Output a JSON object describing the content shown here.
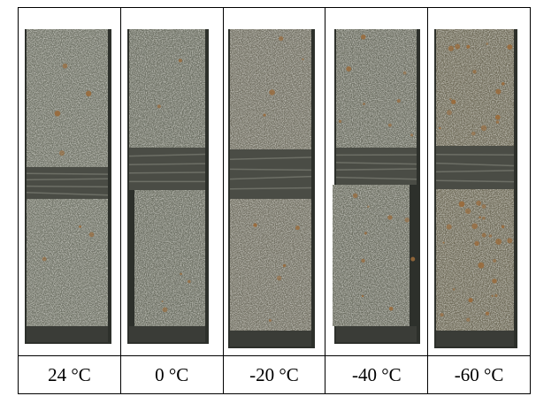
{
  "specimens": [
    {
      "label": "24 °C",
      "icon": "fractured-specimen-photo",
      "tint": "#6f7266"
    },
    {
      "label": "0 °C",
      "icon": "fractured-specimen-photo",
      "tint": "#6b6e62"
    },
    {
      "label": "-20 °C",
      "icon": "fractured-specimen-photo",
      "tint": "#716f62"
    },
    {
      "label": "-40 °C",
      "icon": "fractured-specimen-photo",
      "tint": "#6c6e62"
    },
    {
      "label": "-60 °C",
      "icon": "fractured-specimen-photo",
      "tint": "#6e6a58"
    }
  ]
}
